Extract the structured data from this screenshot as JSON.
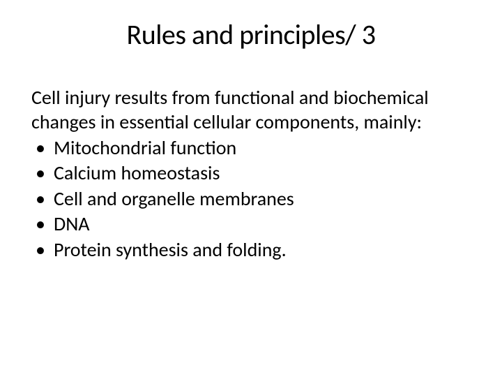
{
  "slide": {
    "title": "Rules and principles/ 3",
    "title_fontsize": 40,
    "intro": "Cell injury results from functional and biochemical changes in essential cellular components, mainly:",
    "body_fontsize": 28,
    "bullets": [
      "Mitochondrial function",
      "Calcium homeostasis",
      "Cell and organelle membranes",
      "DNA",
      "Protein synthesis and folding."
    ],
    "background_color": "#ffffff",
    "text_color": "#000000"
  }
}
